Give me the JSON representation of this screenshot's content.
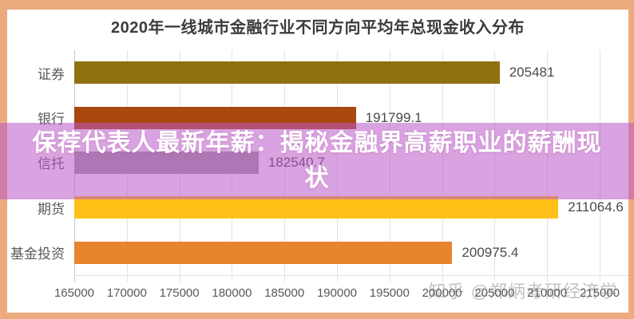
{
  "frame": {
    "border_color": "#edaa7f",
    "background_color": "#ffffff"
  },
  "chart_data": {
    "type": "bar",
    "orientation": "horizontal",
    "title": "2020年一线城市金融行业不同方向平均年总现金收入分布",
    "categories": [
      "证券",
      "银行",
      "信托",
      "期货",
      "基金投资"
    ],
    "values": [
      205481,
      191799.1,
      182540.7,
      211064.6,
      200975.4
    ],
    "value_labels": [
      "205481",
      "191799.1",
      "182540.7",
      "211064.6",
      "200975.4"
    ],
    "bar_colors": [
      "#8f7110",
      "#a8470e",
      "#9e9e9e",
      "#ffc117",
      "#e8832e"
    ],
    "xlabel": "",
    "ylabel": "",
    "xlim": [
      165000,
      215000
    ],
    "x_tick_step": 5000,
    "x_ticks": [
      "165000",
      "170000",
      "175000",
      "180000",
      "185000",
      "190000",
      "195000",
      "200000",
      "205000",
      "210000",
      "215000"
    ],
    "grid": true,
    "legend_position": "none"
  },
  "overlay": {
    "headline": "保荐代表人最新年薪：揭秘金融界高薪职业的薪酬现状",
    "headline_line1": "保荐代表人最新年薪：揭秘金融界高薪职业的薪酬现",
    "headline_line2": "状",
    "band_color": "rgba(186,85,198,0.55)",
    "text_color": "#ffffff"
  },
  "watermark": {
    "text": "知乎 @郑炳考研经济学"
  }
}
